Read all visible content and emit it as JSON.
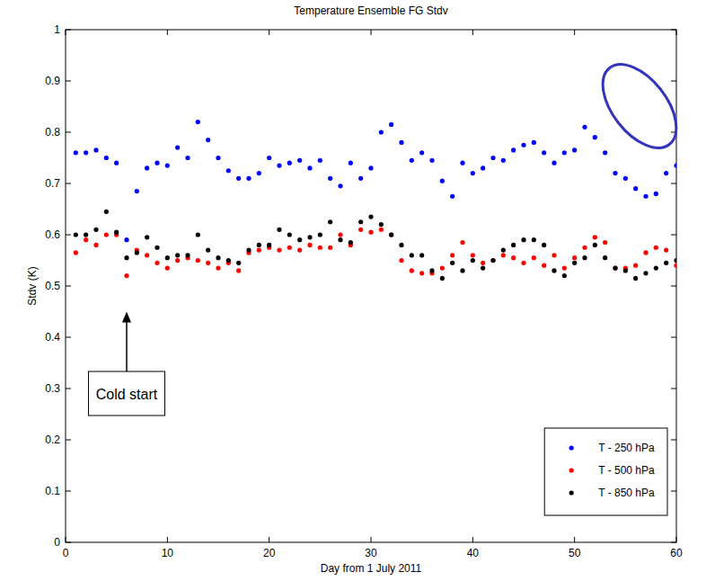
{
  "chart_data": {
    "type": "scatter",
    "title": "Temperature Ensemble FG Stdv",
    "x_label": "Day from 1 July 2011",
    "y_label": "Stdv (K)",
    "xlim": [
      0,
      60
    ],
    "xticks": [
      0,
      10,
      20,
      30,
      40,
      50,
      60
    ],
    "ylim": [
      0,
      1
    ],
    "yticks": [
      0,
      0.1,
      0.2,
      0.3,
      0.4,
      0.5,
      0.6,
      0.7,
      0.8,
      0.9,
      1
    ],
    "grid": false,
    "legend": "lower right",
    "marker": "point",
    "x": [
      1,
      2,
      3,
      4,
      5,
      6,
      7,
      8,
      9,
      10,
      11,
      12,
      13,
      14,
      15,
      16,
      17,
      18,
      19,
      20,
      21,
      22,
      23,
      24,
      25,
      26,
      27,
      28,
      29,
      30,
      31,
      32,
      33,
      34,
      35,
      36,
      37,
      38,
      39,
      40,
      41,
      42,
      43,
      44,
      45,
      46,
      47,
      48,
      49,
      50,
      51,
      52,
      53,
      54,
      55,
      56,
      57,
      58,
      59,
      60
    ],
    "series": [
      {
        "name": "T - 250 hPa",
        "color": "#0000ff",
        "values": [
          0.76,
          0.76,
          0.765,
          0.75,
          0.74,
          0.59,
          0.685,
          0.73,
          0.74,
          0.735,
          0.77,
          0.75,
          0.82,
          0.785,
          0.75,
          0.725,
          0.71,
          0.71,
          0.72,
          0.75,
          0.735,
          0.74,
          0.745,
          0.73,
          0.745,
          0.71,
          0.695,
          0.74,
          0.71,
          0.73,
          0.8,
          0.815,
          0.78,
          0.745,
          0.76,
          0.745,
          0.705,
          0.675,
          0.74,
          0.72,
          0.73,
          0.75,
          0.745,
          0.765,
          0.775,
          0.78,
          0.76,
          0.74,
          0.76,
          0.765,
          0.81,
          0.79,
          0.76,
          0.72,
          0.71,
          0.69,
          0.675,
          0.68,
          0.72,
          0.735
        ]
      },
      {
        "name": "T - 500 hPa",
        "color": "#ff0000",
        "values": [
          0.565,
          0.59,
          0.58,
          0.6,
          0.6,
          0.52,
          0.57,
          0.56,
          0.545,
          0.535,
          0.55,
          0.555,
          0.55,
          0.545,
          0.535,
          0.545,
          0.53,
          0.565,
          0.57,
          0.575,
          0.57,
          0.575,
          0.57,
          0.58,
          0.575,
          0.575,
          0.6,
          0.58,
          0.61,
          0.605,
          0.61,
          0.6,
          0.55,
          0.53,
          0.525,
          0.525,
          0.535,
          0.56,
          0.585,
          0.56,
          0.545,
          0.55,
          0.56,
          0.555,
          0.545,
          0.555,
          0.54,
          0.56,
          0.535,
          0.555,
          0.575,
          0.595,
          0.585,
          0.535,
          0.535,
          0.54,
          0.565,
          0.575,
          0.57,
          0.54
        ]
      },
      {
        "name": "T - 850 hPa",
        "color": "#000000",
        "values": [
          0.6,
          0.6,
          0.61,
          0.645,
          0.605,
          0.555,
          0.565,
          0.595,
          0.575,
          0.555,
          0.56,
          0.56,
          0.6,
          0.57,
          0.555,
          0.55,
          0.545,
          0.57,
          0.58,
          0.58,
          0.61,
          0.6,
          0.59,
          0.595,
          0.6,
          0.625,
          0.59,
          0.585,
          0.625,
          0.635,
          0.62,
          0.6,
          0.58,
          0.56,
          0.56,
          0.53,
          0.515,
          0.545,
          0.53,
          0.55,
          0.535,
          0.55,
          0.57,
          0.58,
          0.59,
          0.59,
          0.58,
          0.53,
          0.52,
          0.545,
          0.555,
          0.58,
          0.555,
          0.535,
          0.53,
          0.515,
          0.525,
          0.535,
          0.545,
          0.55
        ]
      }
    ],
    "annotations": [
      {
        "text": "Cold start",
        "x": 6
      }
    ]
  }
}
